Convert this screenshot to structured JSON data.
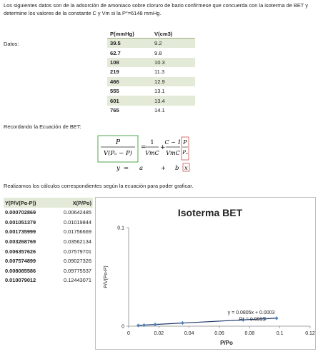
{
  "intro": "Los siguientes datos son de la adsorción de amoniaco sobre cloruro de bario confírmese que concuerda con la isoterma de BET y determine los valores de la constante C y Vm si la P°=6148 mmHg.",
  "datos_label": "Datos:",
  "pv_table": {
    "headers": [
      "P(mmHg)",
      "V(cm3)"
    ],
    "rows": [
      [
        "39.5",
        "9.2"
      ],
      [
        "62.7",
        "9.8"
      ],
      [
        "108",
        "10.3"
      ],
      [
        "219",
        "11.3"
      ],
      [
        "466",
        "12.9"
      ],
      [
        "555",
        "13.1"
      ],
      [
        "601",
        "13.4"
      ],
      [
        "765",
        "14.1"
      ]
    ]
  },
  "recordando": "Recordando la Ecuación de BET:",
  "equation": {
    "lhs_num": "P",
    "lhs_den": "V(Pₒ − P)",
    "eq": "=",
    "t1_num": "1",
    "t1_den": "VmC",
    "plus": "+",
    "t2_num": "C − 1",
    "t2_den": "VmC",
    "ratio_num": "P",
    "ratio_den": "Pₒ",
    "sub_y": "y",
    "sub_eq": "=",
    "sub_a": "a",
    "sub_plus": "+",
    "sub_b": "b",
    "sub_x": "x"
  },
  "realizamos": "Realizamos los cálculos correspondientes según la ecuación para poder graficar.",
  "yx_table": {
    "headers": [
      "Y(P/V(Po-P))",
      "X(P/Po)"
    ],
    "rows": [
      [
        "0.000702869",
        "0.00642485"
      ],
      [
        "0.001051379",
        "0.01019844"
      ],
      [
        "0.001735999",
        "0.01756669"
      ],
      [
        "0.003268769",
        "0.03562134"
      ],
      [
        "0.006357626",
        "0.07579701"
      ],
      [
        "0.007574899",
        "0.09027326"
      ],
      [
        "0.008085586",
        "0.09775537"
      ],
      [
        "0.010079012",
        "0.12443071"
      ]
    ]
  },
  "chart_data": {
    "type": "scatter",
    "title": "Isoterma BET",
    "xlabel": "P/Po",
    "ylabel": "P/V(Po-P)",
    "xlim": [
      0,
      0.12
    ],
    "ylim": [
      0,
      0.1
    ],
    "xticks": [
      "0",
      "0.02",
      "0.04",
      "0.06",
      "0.08",
      "0.1",
      "0.12"
    ],
    "yticks": [
      "0",
      "0.1"
    ],
    "points": [
      [
        0.00642485,
        0.000702869
      ],
      [
        0.01019844,
        0.001051379
      ],
      [
        0.01756669,
        0.001735999
      ],
      [
        0.03562134,
        0.003268769
      ],
      [
        0.07579701,
        0.006357626
      ],
      [
        0.09027326,
        0.007574899
      ],
      [
        0.09775537,
        0.008085586
      ]
    ],
    "trendline": {
      "slope": 0.0805,
      "intercept": 0.0003
    },
    "equation_label": "y = 0.0805x + 0.0003",
    "r2_label": "R² = 0.9995",
    "marker_color": "#4f81bd",
    "line_color": "#1f3a6e"
  }
}
